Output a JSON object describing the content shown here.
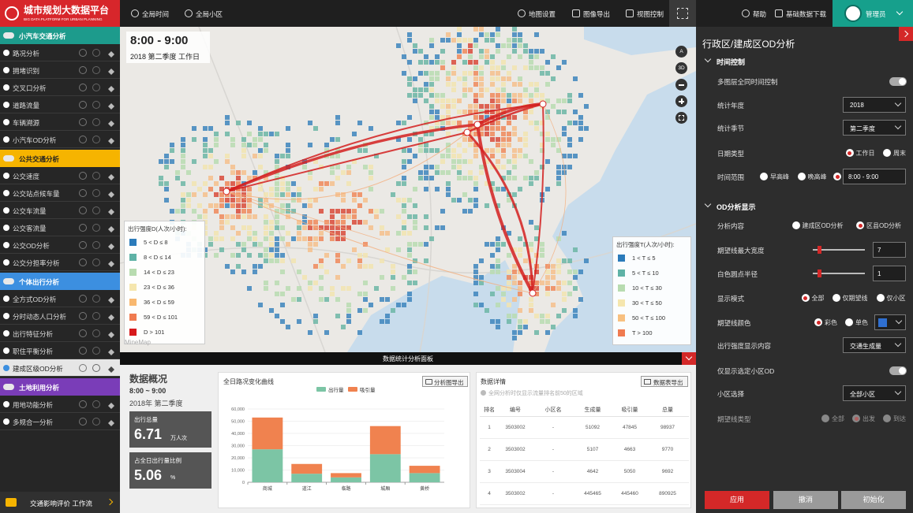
{
  "header": {
    "logo_title": "城市规划大数据平台",
    "logo_subtitle": "BIG DATA PLATFORM FOR URBAN PLANNING",
    "global_time": "全局时间",
    "global_zone": "全局小区",
    "map_settings": "地图设置",
    "image_export": "图像导出",
    "view_control": "视图控制",
    "help": "帮助",
    "data_download": "基础数据下载",
    "user": "管理员"
  },
  "sidebar": {
    "groups": [
      {
        "title": "小汽车交通分析",
        "color": "#1d9b8c",
        "items": [
          "路况分析",
          "拥堵识别",
          "交叉口分析",
          "道路流量",
          "车辆溯源",
          "小汽车OD分析"
        ]
      },
      {
        "title": "公共交通分析",
        "color": "#f6b400",
        "items": [
          "公交速度",
          "公交站点候车量",
          "公交车流量",
          "公交客流量",
          "公交OD分析",
          "公交分担率分析"
        ]
      },
      {
        "title": "个体出行分析",
        "color": "#3c8fe0",
        "items": [
          "全方式OD分析",
          "分时动态人口分析",
          "出行特征分析",
          "职住平衡分析",
          "建成区级OD分析"
        ]
      },
      {
        "title": "土地利用分析",
        "color": "#7a3db8",
        "items": [
          "用地功能分析",
          "多规合一分析"
        ]
      }
    ],
    "active_group": 2,
    "active_item": 4,
    "footer": "交通影响评价 工作流"
  },
  "map": {
    "time": "8:00 - 9:00",
    "period": "2018 第二季度 工作日",
    "controls": [
      "A",
      "3D"
    ],
    "watermark": "MineMap",
    "legend_d": {
      "title": "出行强度D(人次/小时):",
      "items": [
        {
          "label": "5 < D ≤ 8",
          "color": "#2b7bba"
        },
        {
          "label": "8 < D ≤ 14",
          "color": "#5fb2a6"
        },
        {
          "label": "14 < D ≤ 23",
          "color": "#b8dcb0"
        },
        {
          "label": "23 < D ≤ 36",
          "color": "#f5e6ae"
        },
        {
          "label": "36 < D ≤ 59",
          "color": "#f8b870"
        },
        {
          "label": "59 < D ≤ 101",
          "color": "#f07b50"
        },
        {
          "label": "D > 101",
          "color": "#d7191c"
        }
      ]
    },
    "legend_t": {
      "title": "出行强度T(人次/小时):",
      "items": [
        {
          "label": "1 < T ≤ 5",
          "color": "#2b7bba"
        },
        {
          "label": "5 < T ≤ 10",
          "color": "#5fb2a6"
        },
        {
          "label": "10 < T ≤ 30",
          "color": "#b8dcb0"
        },
        {
          "label": "30 < T ≤ 50",
          "color": "#f5e6ae"
        },
        {
          "label": "50 < T ≤ 100",
          "color": "#f8c080"
        },
        {
          "label": "T > 100",
          "color": "#f07b50"
        }
      ]
    }
  },
  "panel": {
    "title": "数据统计分析面板",
    "overview": {
      "title": "数据概况",
      "time": "8:00 ~ 9:00",
      "period": "2018年 第二季度",
      "stats": [
        {
          "label": "出行总量",
          "value": 6.71,
          "unit": "万人次"
        },
        {
          "label": "占全日出行量比例",
          "value": 5.06,
          "unit": "%"
        }
      ]
    },
    "chart_export": "分析图导出",
    "table": {
      "title": "数据详情",
      "export": "数据表导出",
      "note": "全网分析时仅显示流量排名前50的区域",
      "columns": [
        "排名",
        "编号",
        "小区名",
        "生成量",
        "吸引量",
        "总量"
      ],
      "rows": [
        [
          1,
          "3503002",
          "-",
          51092,
          47845,
          98937
        ],
        [
          2,
          "3503002",
          "-",
          5107,
          4663,
          9770
        ],
        [
          3,
          "3503004",
          "-",
          4642,
          5050,
          9692
        ],
        [
          4,
          "3503002",
          "-",
          445465,
          445460,
          890925
        ]
      ]
    }
  },
  "chart_data": {
    "type": "bar",
    "stacked": true,
    "title": "全日路况变化曲线",
    "categories": [
      "商城",
      "道江",
      "临路",
      "城厢",
      "黄桥"
    ],
    "series": [
      {
        "name": "出行量",
        "color": "#7cc5a5",
        "values": [
          27000,
          7000,
          4000,
          23000,
          7500
        ]
      },
      {
        "name": "吸引量",
        "color": "#f0824f",
        "values": [
          26000,
          8000,
          3500,
          23000,
          6000
        ]
      }
    ],
    "ylim": [
      0,
      60000
    ],
    "yticks": [
      0,
      {
        "value": 10000,
        "label": "10,000"
      },
      {
        "value": 20000,
        "label": "20,000"
      },
      {
        "value": 30000,
        "label": "30,000"
      },
      {
        "value": 40000,
        "label": "40,000"
      },
      {
        "value": 50000,
        "label": "50,000"
      },
      {
        "value": 60000,
        "label": "60,000"
      }
    ],
    "grid": true
  },
  "settings": {
    "title": "行政区/建成区OD分析",
    "sections": [
      {
        "title": "时间控制",
        "rows": [
          {
            "label": "多图层全同时间控制",
            "control": "toggle"
          },
          {
            "label": "统计年度",
            "control": "select",
            "value": "2018"
          },
          {
            "label": "统计季节",
            "control": "select",
            "value": "第二季度"
          },
          {
            "label": "日期类型",
            "control": "radio",
            "options": [
              "工作日",
              "周末"
            ],
            "selected": 0
          },
          {
            "label": "时间范围",
            "control": "radio",
            "options": [
              "早高峰",
              "晚高峰"
            ],
            "input": "8:00 - 9:00",
            "selected": 2
          }
        ]
      },
      {
        "title": "OD分析显示",
        "rows": [
          {
            "label": "分析内容",
            "control": "radio",
            "options": [
              "建成区OD分析",
              "区县OD分析"
            ],
            "selected": 1
          },
          {
            "label": "期望线最大宽度",
            "control": "slider",
            "value": 7
          },
          {
            "label": "白色圆点半径",
            "control": "slider",
            "value": 1
          },
          {
            "label": "显示模式",
            "control": "radio",
            "options": [
              "全部",
              "仅期望线",
              "仅小区"
            ],
            "selected": 0
          },
          {
            "label": "期望线颜色",
            "control": "radio",
            "options": [
              "彩色",
              "单色"
            ],
            "selected": 0,
            "swatch": "#2f6fd0"
          },
          {
            "label": "出行强度显示内容",
            "control": "select",
            "value": "交通生成量"
          },
          {
            "label": "仅显示选定小区OD",
            "control": "toggle"
          },
          {
            "label": "小区选择",
            "control": "select",
            "value": "全部小区"
          },
          {
            "label": "期望线类型",
            "control": "radio",
            "options": [
              "全部",
              "出发",
              "到达"
            ],
            "selected": 1,
            "disabled": true
          }
        ]
      }
    ],
    "buttons": [
      "应用",
      "撤消",
      "初始化"
    ]
  }
}
